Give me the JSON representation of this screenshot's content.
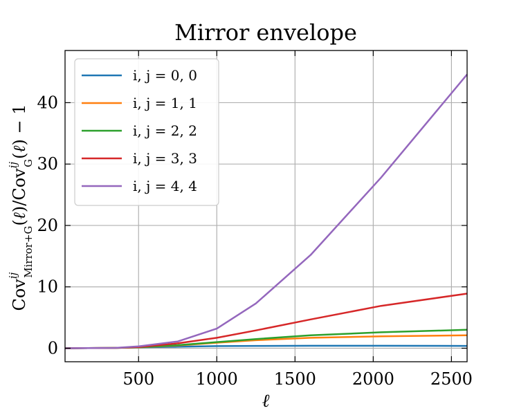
{
  "chart_data": {
    "type": "line",
    "title": "Mirror envelope",
    "xlabel": "ℓ",
    "ylabel": "Cov^{ij}_{Mirror+G}(ℓ)/Cov^{ij}_{G}(ℓ) − 1",
    "xlim": [
      30,
      2600
    ],
    "ylim": [
      -2.2,
      48.5
    ],
    "xticks": [
      500,
      1000,
      1500,
      2000,
      2500
    ],
    "yticks": [
      0,
      10,
      20,
      30,
      40
    ],
    "grid": true,
    "legend_position": "top-left",
    "series": [
      {
        "name": "i, j = 0, 0",
        "color": "#1f77b4",
        "x": [
          30,
          350,
          500,
          750,
          1000,
          1250,
          1600,
          2050,
          2600
        ],
        "y": [
          0,
          0.05,
          0.15,
          0.25,
          0.35,
          0.38,
          0.4,
          0.4,
          0.38
        ]
      },
      {
        "name": "i, j = 1, 1",
        "color": "#ff7f0e",
        "x": [
          30,
          350,
          500,
          750,
          1000,
          1250,
          1600,
          2050,
          2600
        ],
        "y": [
          0,
          0.05,
          0.15,
          0.45,
          0.9,
          1.3,
          1.7,
          1.95,
          2.1
        ]
      },
      {
        "name": "i, j = 2, 2",
        "color": "#2ca02c",
        "x": [
          30,
          350,
          500,
          750,
          1000,
          1250,
          1600,
          2050,
          2600
        ],
        "y": [
          0,
          0.05,
          0.15,
          0.5,
          1.0,
          1.5,
          2.1,
          2.6,
          3.0
        ]
      },
      {
        "name": "i, j = 3, 3",
        "color": "#d62728",
        "x": [
          30,
          350,
          500,
          750,
          1000,
          1250,
          1600,
          2050,
          2600
        ],
        "y": [
          0,
          0.05,
          0.2,
          0.8,
          1.7,
          2.9,
          4.7,
          6.9,
          8.9
        ]
      },
      {
        "name": "i, j = 4, 4",
        "color": "#9467bd",
        "x": [
          30,
          350,
          500,
          750,
          1000,
          1250,
          1600,
          2050,
          2600
        ],
        "y": [
          0,
          0.05,
          0.3,
          1.1,
          3.2,
          7.3,
          15.2,
          27.8,
          44.6
        ]
      }
    ]
  }
}
